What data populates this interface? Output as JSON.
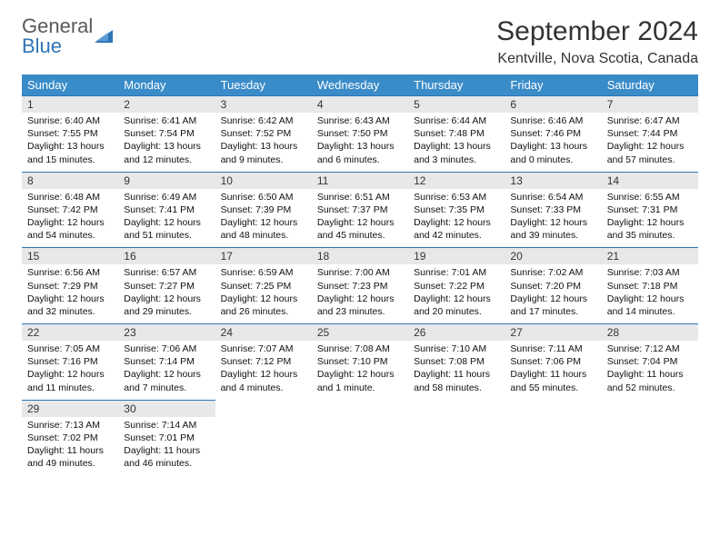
{
  "logo": {
    "text1": "General",
    "text2": "Blue"
  },
  "title": "September 2024",
  "location": "Kentville, Nova Scotia, Canada",
  "colors": {
    "header_bg": "#3a8cc9",
    "header_text": "#ffffff",
    "daynum_bg": "#e8e8e8",
    "row_border": "#2e75b6",
    "logo_gray": "#5a5a5a",
    "logo_blue": "#2e75b6"
  },
  "weekdays": [
    "Sunday",
    "Monday",
    "Tuesday",
    "Wednesday",
    "Thursday",
    "Friday",
    "Saturday"
  ],
  "weeks": [
    [
      {
        "num": "1",
        "sunrise": "Sunrise: 6:40 AM",
        "sunset": "Sunset: 7:55 PM",
        "day1": "Daylight: 13 hours",
        "day2": "and 15 minutes."
      },
      {
        "num": "2",
        "sunrise": "Sunrise: 6:41 AM",
        "sunset": "Sunset: 7:54 PM",
        "day1": "Daylight: 13 hours",
        "day2": "and 12 minutes."
      },
      {
        "num": "3",
        "sunrise": "Sunrise: 6:42 AM",
        "sunset": "Sunset: 7:52 PM",
        "day1": "Daylight: 13 hours",
        "day2": "and 9 minutes."
      },
      {
        "num": "4",
        "sunrise": "Sunrise: 6:43 AM",
        "sunset": "Sunset: 7:50 PM",
        "day1": "Daylight: 13 hours",
        "day2": "and 6 minutes."
      },
      {
        "num": "5",
        "sunrise": "Sunrise: 6:44 AM",
        "sunset": "Sunset: 7:48 PM",
        "day1": "Daylight: 13 hours",
        "day2": "and 3 minutes."
      },
      {
        "num": "6",
        "sunrise": "Sunrise: 6:46 AM",
        "sunset": "Sunset: 7:46 PM",
        "day1": "Daylight: 13 hours",
        "day2": "and 0 minutes."
      },
      {
        "num": "7",
        "sunrise": "Sunrise: 6:47 AM",
        "sunset": "Sunset: 7:44 PM",
        "day1": "Daylight: 12 hours",
        "day2": "and 57 minutes."
      }
    ],
    [
      {
        "num": "8",
        "sunrise": "Sunrise: 6:48 AM",
        "sunset": "Sunset: 7:42 PM",
        "day1": "Daylight: 12 hours",
        "day2": "and 54 minutes."
      },
      {
        "num": "9",
        "sunrise": "Sunrise: 6:49 AM",
        "sunset": "Sunset: 7:41 PM",
        "day1": "Daylight: 12 hours",
        "day2": "and 51 minutes."
      },
      {
        "num": "10",
        "sunrise": "Sunrise: 6:50 AM",
        "sunset": "Sunset: 7:39 PM",
        "day1": "Daylight: 12 hours",
        "day2": "and 48 minutes."
      },
      {
        "num": "11",
        "sunrise": "Sunrise: 6:51 AM",
        "sunset": "Sunset: 7:37 PM",
        "day1": "Daylight: 12 hours",
        "day2": "and 45 minutes."
      },
      {
        "num": "12",
        "sunrise": "Sunrise: 6:53 AM",
        "sunset": "Sunset: 7:35 PM",
        "day1": "Daylight: 12 hours",
        "day2": "and 42 minutes."
      },
      {
        "num": "13",
        "sunrise": "Sunrise: 6:54 AM",
        "sunset": "Sunset: 7:33 PM",
        "day1": "Daylight: 12 hours",
        "day2": "and 39 minutes."
      },
      {
        "num": "14",
        "sunrise": "Sunrise: 6:55 AM",
        "sunset": "Sunset: 7:31 PM",
        "day1": "Daylight: 12 hours",
        "day2": "and 35 minutes."
      }
    ],
    [
      {
        "num": "15",
        "sunrise": "Sunrise: 6:56 AM",
        "sunset": "Sunset: 7:29 PM",
        "day1": "Daylight: 12 hours",
        "day2": "and 32 minutes."
      },
      {
        "num": "16",
        "sunrise": "Sunrise: 6:57 AM",
        "sunset": "Sunset: 7:27 PM",
        "day1": "Daylight: 12 hours",
        "day2": "and 29 minutes."
      },
      {
        "num": "17",
        "sunrise": "Sunrise: 6:59 AM",
        "sunset": "Sunset: 7:25 PM",
        "day1": "Daylight: 12 hours",
        "day2": "and 26 minutes."
      },
      {
        "num": "18",
        "sunrise": "Sunrise: 7:00 AM",
        "sunset": "Sunset: 7:23 PM",
        "day1": "Daylight: 12 hours",
        "day2": "and 23 minutes."
      },
      {
        "num": "19",
        "sunrise": "Sunrise: 7:01 AM",
        "sunset": "Sunset: 7:22 PM",
        "day1": "Daylight: 12 hours",
        "day2": "and 20 minutes."
      },
      {
        "num": "20",
        "sunrise": "Sunrise: 7:02 AM",
        "sunset": "Sunset: 7:20 PM",
        "day1": "Daylight: 12 hours",
        "day2": "and 17 minutes."
      },
      {
        "num": "21",
        "sunrise": "Sunrise: 7:03 AM",
        "sunset": "Sunset: 7:18 PM",
        "day1": "Daylight: 12 hours",
        "day2": "and 14 minutes."
      }
    ],
    [
      {
        "num": "22",
        "sunrise": "Sunrise: 7:05 AM",
        "sunset": "Sunset: 7:16 PM",
        "day1": "Daylight: 12 hours",
        "day2": "and 11 minutes."
      },
      {
        "num": "23",
        "sunrise": "Sunrise: 7:06 AM",
        "sunset": "Sunset: 7:14 PM",
        "day1": "Daylight: 12 hours",
        "day2": "and 7 minutes."
      },
      {
        "num": "24",
        "sunrise": "Sunrise: 7:07 AM",
        "sunset": "Sunset: 7:12 PM",
        "day1": "Daylight: 12 hours",
        "day2": "and 4 minutes."
      },
      {
        "num": "25",
        "sunrise": "Sunrise: 7:08 AM",
        "sunset": "Sunset: 7:10 PM",
        "day1": "Daylight: 12 hours",
        "day2": "and 1 minute."
      },
      {
        "num": "26",
        "sunrise": "Sunrise: 7:10 AM",
        "sunset": "Sunset: 7:08 PM",
        "day1": "Daylight: 11 hours",
        "day2": "and 58 minutes."
      },
      {
        "num": "27",
        "sunrise": "Sunrise: 7:11 AM",
        "sunset": "Sunset: 7:06 PM",
        "day1": "Daylight: 11 hours",
        "day2": "and 55 minutes."
      },
      {
        "num": "28",
        "sunrise": "Sunrise: 7:12 AM",
        "sunset": "Sunset: 7:04 PM",
        "day1": "Daylight: 11 hours",
        "day2": "and 52 minutes."
      }
    ],
    [
      {
        "num": "29",
        "sunrise": "Sunrise: 7:13 AM",
        "sunset": "Sunset: 7:02 PM",
        "day1": "Daylight: 11 hours",
        "day2": "and 49 minutes."
      },
      {
        "num": "30",
        "sunrise": "Sunrise: 7:14 AM",
        "sunset": "Sunset: 7:01 PM",
        "day1": "Daylight: 11 hours",
        "day2": "and 46 minutes."
      },
      null,
      null,
      null,
      null,
      null
    ]
  ]
}
